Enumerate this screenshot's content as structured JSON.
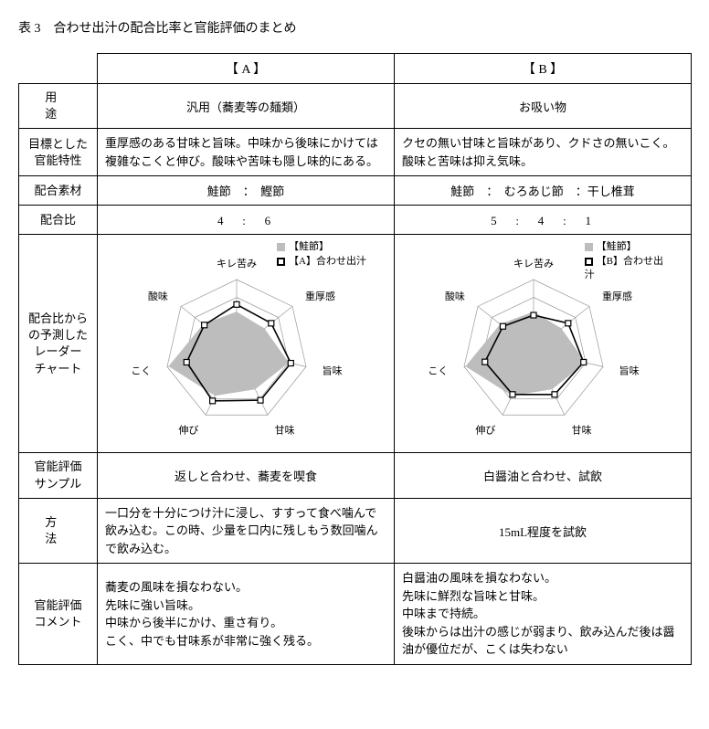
{
  "title": "表 3　合わせ出汁の配合比率と官能評価のまとめ",
  "headers": {
    "a": "【 A 】",
    "b": "【 B 】"
  },
  "rows": {
    "usage_label": "用　　途",
    "usage_a": "汎用（蕎麦等の麺類）",
    "usage_b": "お吸い物",
    "target_label": "目標とした\n官能特性",
    "target_a": "重厚感のある甘味と旨味。中味から後味にかけては複雑なこくと伸び。酸味や苦味も隠し味的にある。",
    "target_b": "クセの無い甘味と旨味があり、クドさの無いこく。酸味と苦味は抑え気味。",
    "material_label": "配合素材",
    "material_a": "鮭節　：　鰹節",
    "material_b": "鮭節　：　むろあじ節　：干し椎茸",
    "ratio_label": "配合比",
    "ratio_a": "4　:　6",
    "ratio_b": "5　:　4　:　1",
    "radar_label": "配合比から\nの予測した\nレーダー\nチャート",
    "sample_label": "官能評価\nサンプル",
    "sample_a": "返しと合わせ、蕎麦を喫食",
    "sample_b": "白醤油と合わせ、試飲",
    "method_label": "方　　法",
    "method_a": "一口分を十分につけ汁に浸し、すすって食べ噛んで飲み込む。この時、少量を口内に残しもう数回噛んで飲み込む。",
    "method_b": "15mL程度を試飲",
    "comment_label": "官能評価\nコメント",
    "comment_a": "蕎麦の風味を損なわない。\n先味に強い旨味。\n中味から後半にかけ、重さ有り。\nこく、中でも甘味系が非常に強く残る。",
    "comment_b": "白醤油の風味を損なわない。\n先味に鮮烈な旨味と甘味。\n中味まで持続。\n後味からは出汁の感じが弱まり、飲み込んだ後は醤油が優位だが、こくは失わない"
  },
  "radar": {
    "axes": [
      "キレ苦み",
      "重厚感",
      "旨味",
      "甘味",
      "伸び",
      "こく",
      "酸味"
    ],
    "legend_base": "【鮭節】",
    "legend_a": "【A】合わせ出汁",
    "legend_b": "【B】合わせ出\n汁",
    "levels": 4,
    "grid_color": "#9a9a9a",
    "base_fill": "#bdbdbd",
    "overlay_stroke": "#000000",
    "overlay_width": 1.6,
    "A": {
      "base": [
        0.55,
        0.5,
        0.75,
        0.6,
        0.7,
        0.98,
        0.6
      ],
      "overlay": [
        0.65,
        0.62,
        0.78,
        0.77,
        0.78,
        0.72,
        0.58
      ]
    },
    "B": {
      "base": [
        0.55,
        0.5,
        0.75,
        0.6,
        0.7,
        0.98,
        0.6
      ],
      "overlay": [
        0.5,
        0.62,
        0.72,
        0.68,
        0.68,
        0.7,
        0.55
      ]
    }
  }
}
